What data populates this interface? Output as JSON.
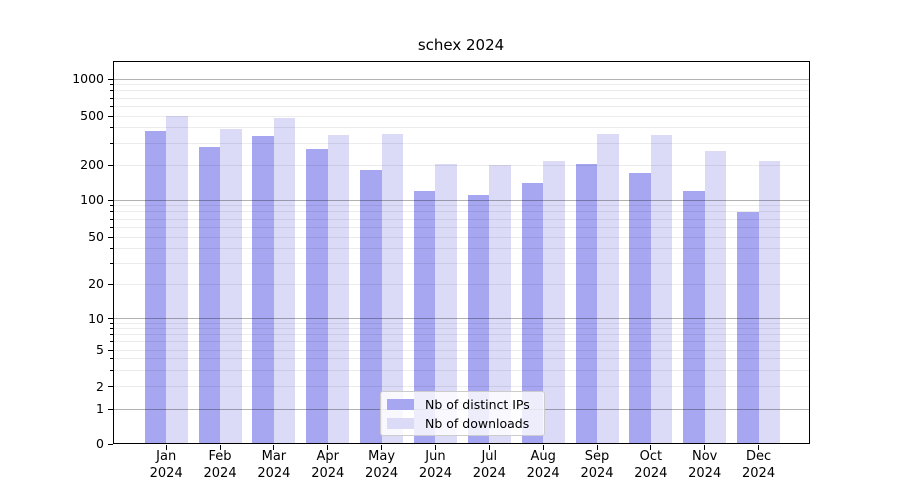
{
  "chart_data": {
    "type": "bar",
    "title": "schex 2024",
    "year": "2024",
    "months": [
      "Jan",
      "Feb",
      "Mar",
      "Apr",
      "May",
      "Jun",
      "Jul",
      "Aug",
      "Sep",
      "Oct",
      "Nov",
      "Dec"
    ],
    "categories": [
      "Jan 2024",
      "Feb 2024",
      "Mar 2024",
      "Apr 2024",
      "May 2024",
      "Jun 2024",
      "Jul 2024",
      "Aug 2024",
      "Sep 2024",
      "Oct 2024",
      "Nov 2024",
      "Dec 2024"
    ],
    "series": [
      {
        "name": "Nb of distinct IPs",
        "color": "#a6a6f1",
        "values": [
          380,
          280,
          345,
          270,
          180,
          120,
          110,
          140,
          205,
          170,
          120,
          80
        ]
      },
      {
        "name": "Nb of downloads",
        "color": "#dbdbf8",
        "values": [
          500,
          390,
          485,
          350,
          360,
          205,
          200,
          215,
          355,
          350,
          260,
          215
        ]
      }
    ],
    "xlabel": "",
    "ylabel": "",
    "yscale": "log-like (symlog with 0 baseline)",
    "yticks": [
      0,
      1,
      2,
      5,
      10,
      20,
      50,
      100,
      200,
      500,
      1000
    ],
    "ylim": [
      0,
      1400
    ],
    "grid": "horizontal, major decades darker + minor lines lighter",
    "legend_position": "lower center inside plot",
    "colors": {
      "major_grid": "#b3b3b3",
      "minor_grid": "#ececec",
      "axis": "#000000",
      "background": "#ffffff"
    }
  }
}
